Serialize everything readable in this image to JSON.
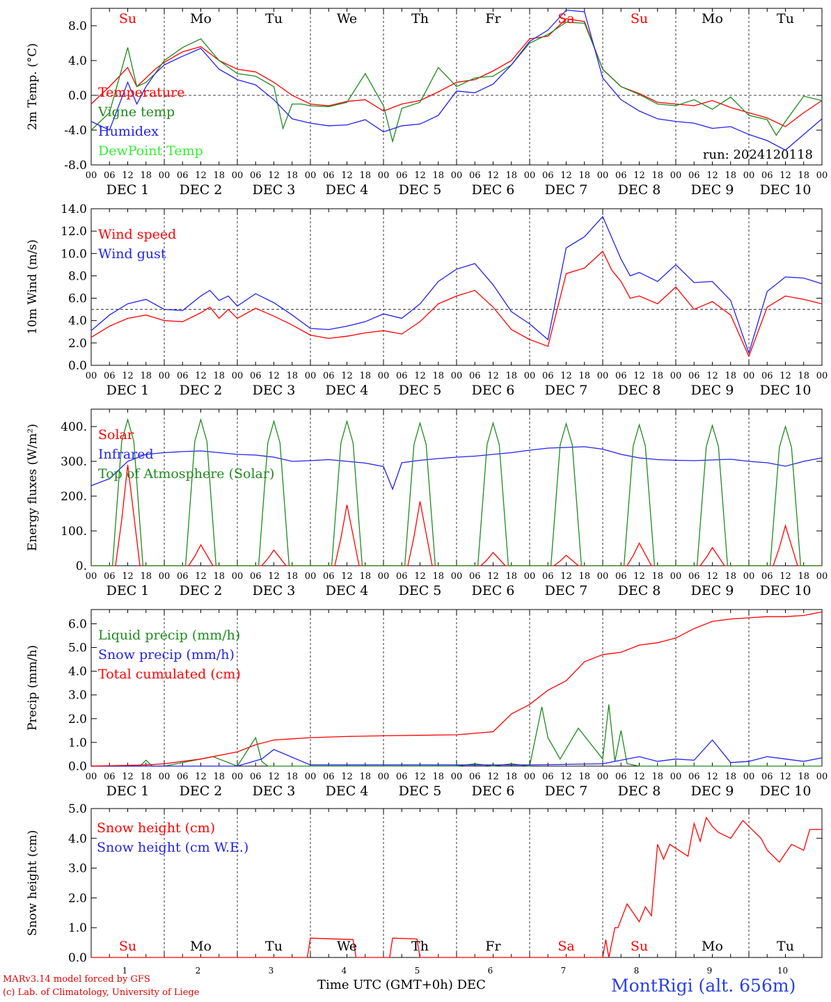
{
  "chart_data": [
    {
      "type": "line",
      "ylabel": "2m Temp. (°C)",
      "ylim": [
        -8,
        10
      ],
      "yticks": [
        "-8.0",
        "-4.0",
        "0.0",
        "4.0",
        "8.0"
      ],
      "yticks_values": [
        -8,
        -4,
        0,
        4,
        8
      ],
      "reference_line": 0,
      "annotation": "run: 2024120118",
      "series": [
        {
          "name": "Temperature",
          "color": "#ff0000",
          "x": [
            0,
            6,
            12,
            15,
            18,
            21,
            24,
            30,
            36,
            42,
            48,
            54,
            60,
            66,
            72,
            78,
            84,
            90,
            96,
            102,
            108,
            114,
            120,
            126,
            132,
            138,
            144,
            150,
            156,
            162,
            168,
            174,
            180,
            186,
            192,
            198,
            204,
            210,
            216,
            222,
            228,
            234,
            240
          ],
          "y": [
            -1,
            1,
            3.2,
            1,
            2,
            3,
            3.8,
            5,
            5.6,
            4,
            3,
            2.7,
            1.5,
            0,
            -1,
            -1.2,
            -0.7,
            -0.5,
            -1.8,
            -1,
            -0.6,
            0.4,
            1.5,
            1.8,
            2.8,
            4,
            6.5,
            6.8,
            8.8,
            8.5,
            3,
            1,
            0.2,
            -0.8,
            -1.0,
            -1.2,
            -0.6,
            -1.4,
            -2.0,
            -2.6,
            -3.6,
            -2,
            -0.6
          ]
        },
        {
          "name": "Vigne temp",
          "color": "#1f8a1f",
          "x": [
            0,
            6,
            12,
            15,
            18,
            21,
            24,
            30,
            36,
            42,
            48,
            54,
            60,
            63,
            66,
            69,
            72,
            78,
            84,
            90,
            96,
            99,
            102,
            108,
            114,
            120,
            126,
            132,
            138,
            144,
            150,
            156,
            162,
            168,
            174,
            180,
            186,
            192,
            198,
            204,
            210,
            216,
            222,
            225,
            228,
            234,
            240
          ],
          "y": [
            -4,
            -2,
            5.5,
            1,
            1.5,
            2.5,
            4,
            5.5,
            6.5,
            4,
            2.5,
            2.2,
            1,
            -3.8,
            -1,
            -1,
            -1.2,
            -1.3,
            -0.8,
            2.5,
            -1.2,
            -5.3,
            -1.5,
            -0.8,
            3.2,
            1,
            2,
            2.2,
            3.5,
            6,
            7,
            8.4,
            8.3,
            3,
            1,
            0.1,
            -1,
            -1.2,
            -0.5,
            -1.6,
            -0.2,
            -2.3,
            -2.8,
            -4.6,
            -3,
            -0.1,
            -0.6
          ]
        },
        {
          "name": "Humidex",
          "color": "#2222ee",
          "x": [
            0,
            6,
            12,
            15,
            18,
            21,
            24,
            30,
            36,
            42,
            48,
            54,
            60,
            66,
            72,
            78,
            84,
            90,
            96,
            102,
            108,
            114,
            120,
            126,
            132,
            138,
            144,
            150,
            156,
            162,
            168,
            174,
            180,
            186,
            192,
            198,
            204,
            210,
            216,
            222,
            228,
            234,
            240
          ],
          "y": [
            -3,
            -4,
            1.5,
            -1,
            1,
            2.5,
            3.5,
            4.5,
            5.4,
            3,
            1.8,
            1.2,
            -0.5,
            -2.7,
            -3.2,
            -3.5,
            -3.4,
            -2.8,
            -4.2,
            -3.5,
            -3.3,
            -2.3,
            0.5,
            0.3,
            1.3,
            3.5,
            6.2,
            7.5,
            9.8,
            9.6,
            2,
            -0.5,
            -1.8,
            -2.7,
            -3.0,
            -3.2,
            -3.8,
            -3.6,
            -4.5,
            -5.2,
            -6.3,
            -4.5,
            -2.7
          ]
        },
        {
          "name": "DewPoint Temp",
          "color": "#33ee33",
          "x": [],
          "y": []
        }
      ]
    },
    {
      "type": "line",
      "ylabel": "10m Wind (m/s)",
      "ylim": [
        0,
        14
      ],
      "yticks": [
        "0.0",
        "2.0",
        "4.0",
        "6.0",
        "8.0",
        "10.0",
        "12.0",
        "14.0"
      ],
      "yticks_values": [
        0,
        2,
        4,
        6,
        8,
        10,
        12,
        14
      ],
      "reference_line": 5,
      "series": [
        {
          "name": "Wind speed",
          "color": "#ff0000",
          "x": [
            0,
            6,
            12,
            18,
            24,
            30,
            36,
            39,
            42,
            45,
            48,
            54,
            60,
            66,
            72,
            78,
            84,
            90,
            96,
            102,
            108,
            114,
            120,
            126,
            132,
            138,
            144,
            150,
            156,
            162,
            168,
            171,
            174,
            177,
            180,
            186,
            192,
            198,
            204,
            210,
            216,
            222,
            228,
            234,
            240
          ],
          "y": [
            2.5,
            3.5,
            4.2,
            4.5,
            4,
            3.9,
            4.7,
            5.2,
            4.2,
            5,
            4.2,
            5.1,
            4.4,
            3.6,
            2.7,
            2.4,
            2.6,
            2.9,
            3.1,
            2.8,
            3.9,
            5.5,
            6.2,
            6.7,
            5.2,
            3.2,
            2.3,
            1.7,
            8.2,
            8.7,
            10.2,
            8.5,
            7.5,
            6,
            6.2,
            5.5,
            7,
            5.0,
            5.7,
            4.5,
            0.8,
            5.2,
            6.2,
            5.9,
            5.5
          ]
        },
        {
          "name": "Wind gust",
          "color": "#2222ee",
          "x": [
            0,
            6,
            12,
            18,
            24,
            30,
            36,
            39,
            42,
            45,
            48,
            54,
            60,
            66,
            72,
            78,
            84,
            90,
            96,
            102,
            108,
            114,
            120,
            126,
            132,
            138,
            144,
            150,
            156,
            162,
            168,
            171,
            174,
            177,
            180,
            186,
            192,
            198,
            204,
            210,
            216,
            222,
            228,
            234,
            240
          ],
          "y": [
            3.1,
            4.5,
            5.5,
            5.9,
            5,
            4.9,
            6.2,
            6.7,
            5.8,
            6.2,
            5.3,
            6.4,
            5.6,
            4.5,
            3.3,
            3.2,
            3.5,
            3.9,
            4.6,
            4.2,
            5.5,
            7.5,
            8.6,
            9.1,
            7.2,
            4.8,
            3.7,
            2.3,
            10.5,
            11.5,
            13.3,
            11.4,
            9.5,
            8.0,
            8.3,
            7.5,
            9.0,
            7.4,
            7.5,
            5.8,
            1.1,
            6.6,
            7.9,
            7.8,
            7.3
          ]
        }
      ]
    },
    {
      "type": "line",
      "ylabel": "Energy fluxes (W/m²)",
      "ylim": [
        0,
        450
      ],
      "yticks": [
        "0.",
        "100.",
        "200.",
        "300.",
        "400."
      ],
      "yticks_values": [
        0,
        100,
        200,
        300,
        400
      ],
      "series": [
        {
          "name": "Solar",
          "color": "#ff0000",
          "daily_peaks": [
            290,
            60,
            45,
            175,
            185,
            38,
            30,
            65,
            52,
            115
          ]
        },
        {
          "name": "Infrared",
          "color": "#2222ee",
          "x": [
            0,
            6,
            12,
            18,
            24,
            30,
            36,
            42,
            48,
            54,
            60,
            66,
            72,
            78,
            84,
            90,
            96,
            99,
            102,
            108,
            114,
            120,
            126,
            132,
            138,
            144,
            150,
            156,
            162,
            168,
            174,
            180,
            186,
            192,
            198,
            204,
            210,
            216,
            222,
            228,
            234,
            240
          ],
          "y": [
            230,
            250,
            300,
            320,
            325,
            328,
            330,
            325,
            320,
            318,
            312,
            300,
            302,
            305,
            300,
            295,
            285,
            220,
            296,
            303,
            308,
            312,
            315,
            320,
            325,
            332,
            338,
            340,
            342,
            335,
            320,
            310,
            305,
            303,
            302,
            304,
            306,
            300,
            296,
            286,
            300,
            310
          ]
        },
        {
          "name": "Top of Atmosphere (Solar)",
          "color": "#1f8a1f",
          "daily_peaks": [
            420,
            420,
            415,
            415,
            410,
            410,
            408,
            405,
            403,
            400
          ]
        }
      ]
    },
    {
      "type": "line",
      "ylabel": "Precip (mm/h)",
      "ylim": [
        0,
        6.6
      ],
      "yticks": [
        "0.0",
        "1.0",
        "2.0",
        "3.0",
        "4.0",
        "5.0",
        "6.0"
      ],
      "yticks_values": [
        0,
        1,
        2,
        3,
        4,
        5,
        6
      ],
      "series": [
        {
          "name": "Liquid precip (mm/h)",
          "color": "#1f8a1f",
          "x": [
            0,
            16,
            18,
            20,
            24,
            36,
            40,
            48,
            54,
            56,
            58,
            72,
            96,
            120,
            126,
            132,
            138,
            144,
            148,
            150,
            154,
            160,
            168,
            170,
            172,
            174,
            176,
            180,
            186,
            192,
            216,
            240
          ],
          "y": [
            0,
            0,
            0.25,
            0,
            0,
            0.3,
            0.4,
            0,
            1.2,
            0.2,
            0,
            0,
            0,
            0,
            0.1,
            0,
            0.1,
            0,
            2.5,
            1.2,
            0.3,
            1.6,
            0.3,
            2.6,
            0.2,
            1.5,
            0.1,
            0,
            0,
            0,
            0,
            0
          ]
        },
        {
          "name": "Snow precip (mm/h)",
          "color": "#2222ee",
          "x": [
            0,
            48,
            56,
            60,
            72,
            96,
            120,
            144,
            168,
            180,
            186,
            192,
            198,
            204,
            210,
            216,
            222,
            228,
            234,
            240
          ],
          "y": [
            0,
            0,
            0.3,
            0.7,
            0.05,
            0.05,
            0.05,
            0.05,
            0.1,
            0.4,
            0.2,
            0.3,
            0.25,
            1.1,
            0.15,
            0.2,
            0.4,
            0.3,
            0.2,
            0.35
          ]
        },
        {
          "name": "Total cumulated (cm)",
          "color": "#ff0000",
          "x": [
            0,
            18,
            24,
            36,
            48,
            54,
            60,
            66,
            72,
            84,
            96,
            108,
            120,
            132,
            138,
            144,
            150,
            156,
            162,
            168,
            174,
            180,
            186,
            192,
            198,
            204,
            210,
            216,
            222,
            228,
            234,
            240
          ],
          "y": [
            0,
            0.05,
            0.1,
            0.3,
            0.6,
            0.9,
            1.1,
            1.15,
            1.2,
            1.25,
            1.28,
            1.3,
            1.32,
            1.45,
            2.2,
            2.6,
            3.2,
            3.6,
            4.4,
            4.7,
            4.8,
            5.1,
            5.2,
            5.4,
            5.8,
            6.1,
            6.2,
            6.25,
            6.3,
            6.3,
            6.35,
            6.5
          ]
        }
      ]
    },
    {
      "type": "line",
      "ylabel": "Snow height (cm)",
      "ylim": [
        0,
        5
      ],
      "yticks": [
        "0.0",
        "1.0",
        "2.0",
        "3.0",
        "4.0",
        "5.0"
      ],
      "yticks_values": [
        0,
        1,
        2,
        3,
        4,
        5
      ],
      "series": [
        {
          "name": "Snow height (cm)",
          "color": "#ff0000",
          "x": [
            0,
            71,
            72,
            86,
            87,
            98,
            99,
            107,
            108,
            168,
            169,
            170,
            172,
            173,
            176,
            180,
            182,
            184,
            186,
            188,
            190,
            196,
            198,
            200,
            202,
            204,
            206,
            210,
            214,
            216,
            220,
            222,
            226,
            230,
            234,
            236,
            240
          ],
          "y": [
            0,
            0,
            0.65,
            0.6,
            0,
            0,
            0.65,
            0.62,
            0,
            0,
            0.6,
            0,
            1.0,
            1.0,
            1.8,
            1.2,
            1.7,
            1.4,
            3.8,
            3.3,
            3.8,
            3.4,
            4.5,
            3.9,
            4.7,
            4.4,
            4.2,
            4.0,
            4.6,
            4.4,
            4.0,
            3.6,
            3.2,
            3.8,
            3.6,
            4.3,
            4.3
          ]
        },
        {
          "name": "Snow height (cm W.E.)",
          "color": "#2222ee",
          "x": [],
          "y": []
        }
      ]
    }
  ],
  "days_top": [
    {
      "label": "Su",
      "color": "#ff0000"
    },
    {
      "label": "Mo",
      "color": "#000000"
    },
    {
      "label": "Tu",
      "color": "#000000"
    },
    {
      "label": "We",
      "color": "#000000"
    },
    {
      "label": "Th",
      "color": "#000000"
    },
    {
      "label": "Fr",
      "color": "#000000"
    },
    {
      "label": "Sa",
      "color": "#ff0000"
    },
    {
      "label": "Su",
      "color": "#ff0000"
    },
    {
      "label": "Mo",
      "color": "#000000"
    },
    {
      "label": "Tu",
      "color": "#000000"
    }
  ],
  "hour_ticks": [
    "00",
    "06",
    "12",
    "18"
  ],
  "hour_ticks_last": "00",
  "date_labels": [
    "DEC  1",
    "DEC  2",
    "DEC  3",
    "DEC  4",
    "DEC  5",
    "DEC  6",
    "DEC  7",
    "DEC  8",
    "DEC  9",
    "DEC 10"
  ],
  "bottom_day_numbers": [
    "1",
    "2",
    "3",
    "4",
    "5",
    "6",
    "7",
    "8",
    "9",
    "10"
  ],
  "footer": {
    "credit_line1": "MARv3.14 model forced by GFS",
    "credit_line2": "(c) Lab. of Climatology, University of Liege",
    "xaxis_title": "Time UTC (GMT+0h) DEC",
    "station": "MontRigi (alt. 656m)"
  }
}
